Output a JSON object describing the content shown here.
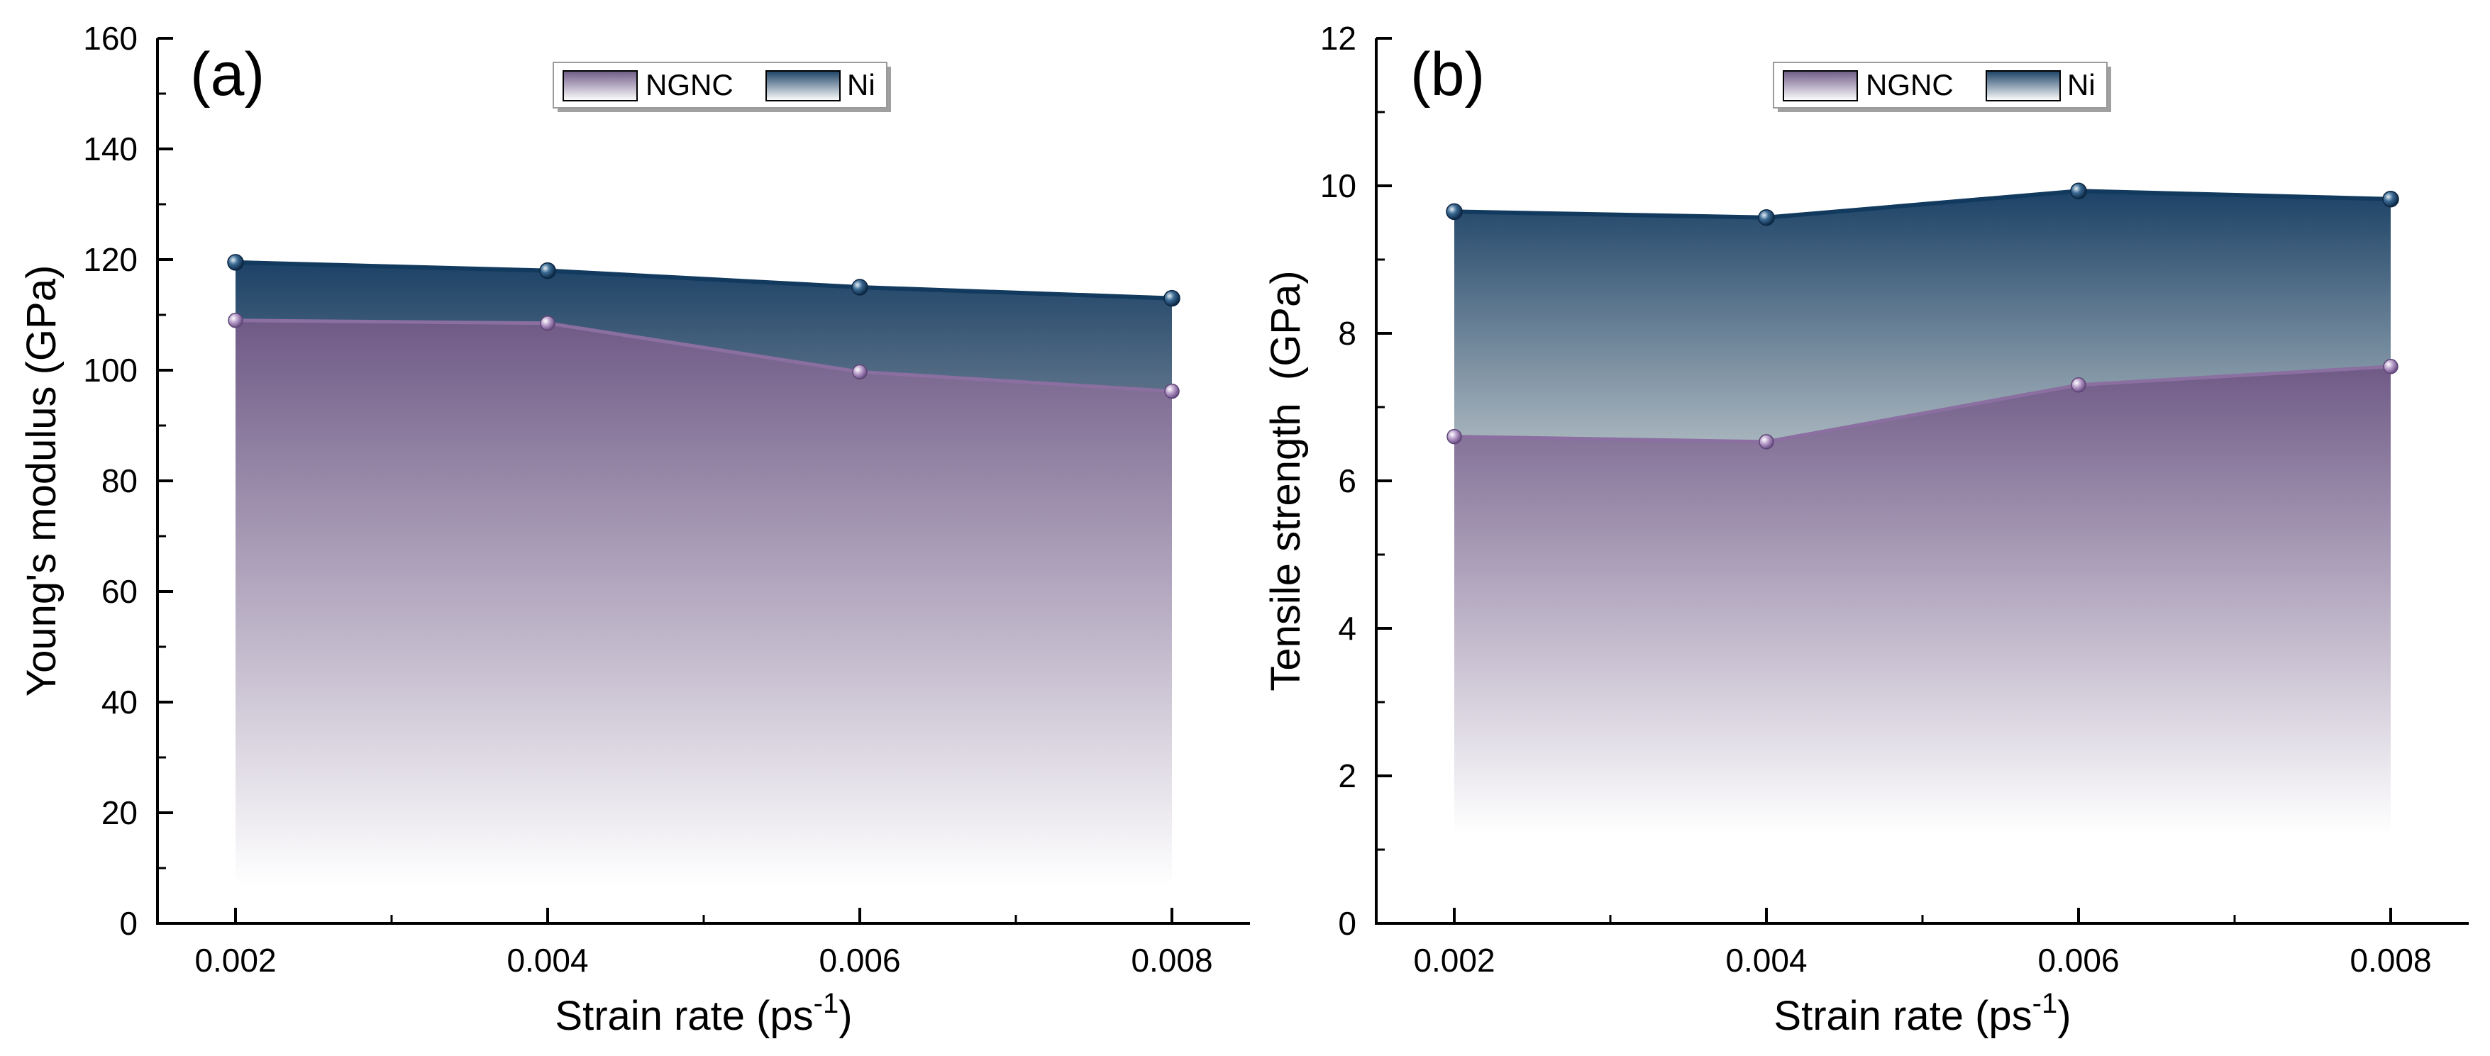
{
  "chart_data": [
    {
      "type": "area",
      "panel_label": "(a)",
      "title": "",
      "xlabel": {
        "text": "Strain rate (ps",
        "superscript": "-1",
        "closing": ")"
      },
      "ylabel": "Young's modulus (GPa)",
      "categories": [
        "0.002",
        "0.004",
        "0.006",
        "0.008"
      ],
      "x": [
        0.002,
        0.004,
        0.006,
        0.008
      ],
      "xlim": [
        0.0015,
        0.0085
      ],
      "ylim": [
        0,
        160
      ],
      "yticks": [
        0,
        20,
        40,
        60,
        80,
        100,
        120,
        140,
        160
      ],
      "ytick_labels": [
        "0",
        "20",
        "40",
        "60",
        "80",
        "100",
        "120",
        "140",
        "160"
      ],
      "legend_position": "top-center",
      "grid": false,
      "series": [
        {
          "name": "NGNC",
          "values": [
            109,
            108.5,
            99.7,
            96.2
          ]
        },
        {
          "name": "Ni",
          "values": [
            119.5,
            118,
            115,
            113
          ]
        }
      ]
    },
    {
      "type": "area",
      "panel_label": "(b)",
      "title": "",
      "xlabel": {
        "text": "Strain rate (ps",
        "superscript": "-1",
        "closing": ")"
      },
      "ylabel": "Tensile strength  (GPa)",
      "categories": [
        "0.002",
        "0.004",
        "0.006",
        "0.008"
      ],
      "x": [
        0.002,
        0.004,
        0.006,
        0.008
      ],
      "xlim": [
        0.0015,
        0.0085
      ],
      "ylim": [
        0,
        12
      ],
      "yticks": [
        0,
        2,
        4,
        6,
        8,
        10,
        12
      ],
      "ytick_labels": [
        "0",
        "2",
        "4",
        "6",
        "8",
        "10",
        "12"
      ],
      "legend_position": "top-center",
      "grid": false,
      "series": [
        {
          "name": "NGNC",
          "values": [
            6.6,
            6.53,
            7.3,
            7.55
          ]
        },
        {
          "name": "Ni",
          "values": [
            9.65,
            9.57,
            9.93,
            9.82
          ]
        }
      ]
    }
  ],
  "colors": {
    "ngnc_fill_top": "#6f5a86",
    "ngnc_line": "#8a6fa0",
    "ni_fill_top": "#1c4266",
    "ni_fill_bottom": "#a7b4bd",
    "ni_line": "#123a5e",
    "axis": "#000000"
  }
}
